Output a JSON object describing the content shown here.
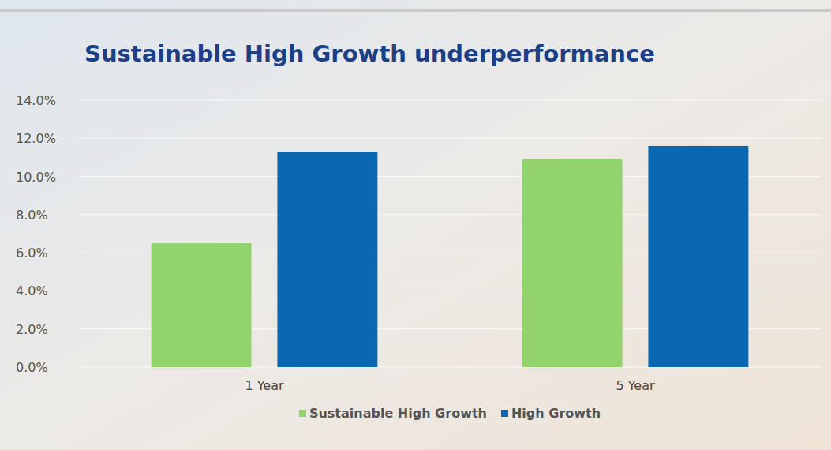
{
  "chart_data": {
    "type": "bar",
    "title": "Sustainable High Growth underperformance",
    "categories": [
      "1 Year",
      "5 Year"
    ],
    "series": [
      {
        "name": "Sustainable High Growth",
        "color": "#92d36e",
        "values": [
          6.5,
          10.9
        ]
      },
      {
        "name": "High Growth",
        "color": "#0a68b2",
        "values": [
          11.3,
          11.6
        ]
      }
    ],
    "ylim": [
      0,
      14
    ],
    "yticks": [
      {
        "value": 0,
        "label": "0.0%"
      },
      {
        "value": 2,
        "label": "2.0%"
      },
      {
        "value": 4,
        "label": "4.0%"
      },
      {
        "value": 6,
        "label": "6.0%"
      },
      {
        "value": 8,
        "label": "8.0%"
      },
      {
        "value": 10,
        "label": "10.0%"
      },
      {
        "value": 12,
        "label": "12.0%"
      },
      {
        "value": 14,
        "label": "14.0%"
      }
    ],
    "grid": true,
    "legend": "bottom"
  }
}
